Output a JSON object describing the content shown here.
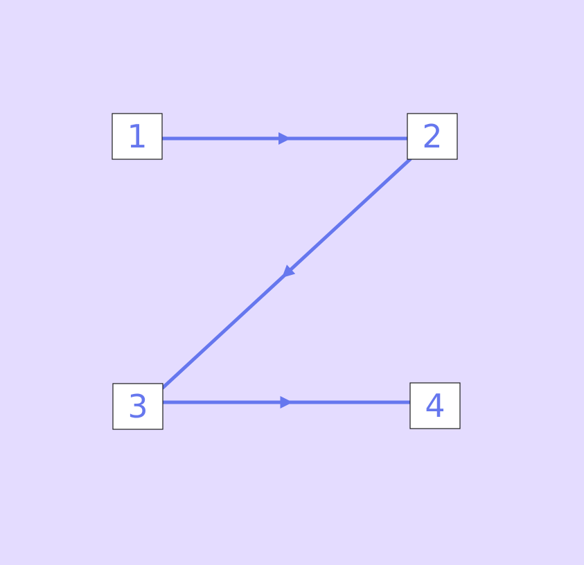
{
  "colors": {
    "background": "#e4dcff",
    "edge": "#6677ee",
    "label": "#6677ee",
    "box_fill": "#ffffff",
    "box_stroke": "#1a1a1a"
  },
  "nodes": [
    {
      "id": "1",
      "label": "1"
    },
    {
      "id": "2",
      "label": "2"
    },
    {
      "id": "3",
      "label": "3"
    },
    {
      "id": "4",
      "label": "4"
    }
  ],
  "edges": [
    {
      "from": "1",
      "to": "2"
    },
    {
      "from": "2",
      "to": "3"
    },
    {
      "from": "3",
      "to": "4"
    }
  ]
}
